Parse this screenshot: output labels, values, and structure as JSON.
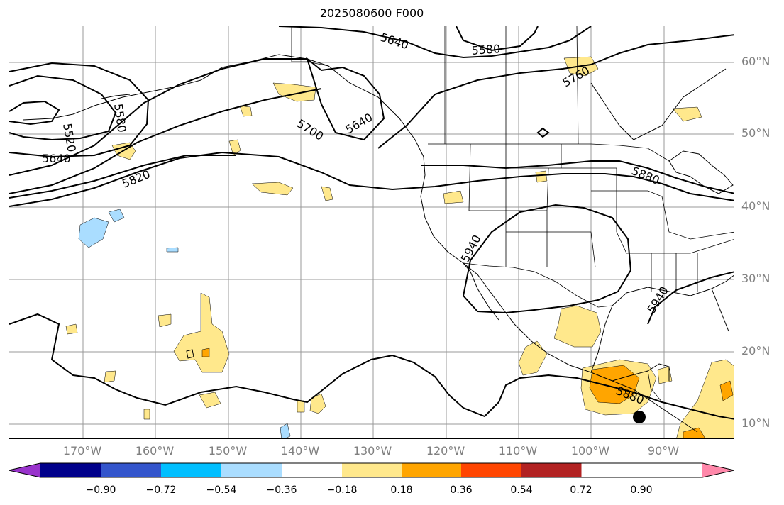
{
  "title": "2025080600 F000",
  "lat_labels": [
    "60°N",
    "50°N",
    "40°N",
    "30°N",
    "20°N",
    "10°N"
  ],
  "lon_labels": [
    "170°W",
    "160°W",
    "150°W",
    "140°W",
    "130°W",
    "120°W",
    "110°W",
    "100°W",
    "90°W"
  ],
  "contour_labels": [
    "5520",
    "5580",
    "5640",
    "5640",
    "5580",
    "5640",
    "5700",
    "5760",
    "5820",
    "5880",
    "5940",
    "5940",
    "5880"
  ],
  "colorbar": {
    "tick_labels": [
      "−0.90",
      "−0.72",
      "−0.54",
      "−0.36",
      "−0.18",
      "0.18",
      "0.36",
      "0.54",
      "0.72",
      "0.90"
    ],
    "colors": [
      "#9933cc",
      "#00008b",
      "#3355cc",
      "#00bfff",
      "#aaddff",
      "#ffffff",
      "#ffe88c",
      "#ffa500",
      "#ff4500",
      "#b22222",
      "#ff88aa"
    ]
  },
  "shading_colors": {
    "light_yellow": "#ffe88c",
    "orange": "#ffa500",
    "light_blue": "#aaddff"
  },
  "marker": "filled-black-circle"
}
